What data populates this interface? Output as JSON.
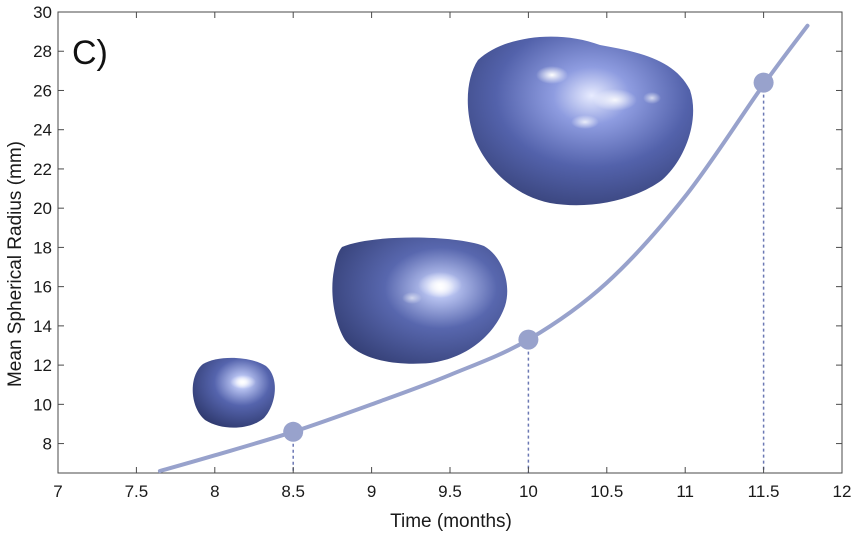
{
  "chart_data": {
    "type": "line",
    "panel_label": "C)",
    "xlabel": "Time (months)",
    "ylabel": "Mean Spherical Radius (mm)",
    "xlim": [
      7,
      12
    ],
    "ylim": [
      6.5,
      30
    ],
    "x_ticks": [
      "7",
      "7.5",
      "8",
      "8.5",
      "9",
      "9.5",
      "10",
      "10.5",
      "11",
      "11.5",
      "12"
    ],
    "y_ticks": [
      "8",
      "10",
      "12",
      "14",
      "16",
      "18",
      "20",
      "22",
      "24",
      "26",
      "28",
      "30"
    ],
    "grid": false,
    "curve": {
      "x": [
        7.65,
        8.0,
        8.5,
        9.0,
        9.5,
        10.0,
        10.5,
        11.0,
        11.5,
        11.78
      ],
      "y": [
        6.6,
        7.4,
        8.6,
        10.0,
        11.5,
        13.3,
        16.2,
        20.6,
        26.3,
        29.3
      ]
    },
    "points": [
      {
        "x": 8.5,
        "y": 8.6
      },
      {
        "x": 10.0,
        "y": 13.3
      },
      {
        "x": 11.5,
        "y": 26.4
      }
    ],
    "colors": {
      "curve": "#98a2cc",
      "marker": "#98a2cc",
      "dropline": "#6b78b4",
      "tumor_light": "#7a8ad0",
      "tumor_mid": "#4e5da3",
      "tumor_dark": "#2a3466",
      "highlight": "#ffffff"
    }
  }
}
